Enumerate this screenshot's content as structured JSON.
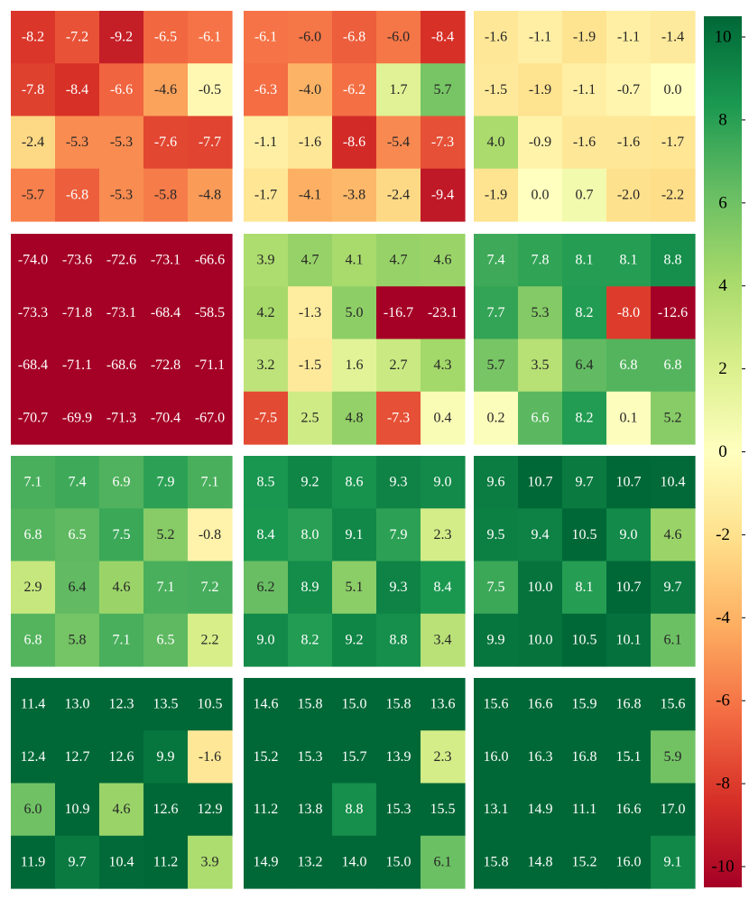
{
  "chart_data": {
    "type": "heatmap",
    "colormap": "RdYlGn",
    "vmin": -10.5,
    "vmax": 10.5,
    "colorbar_ticks": [
      10,
      8,
      6,
      4,
      2,
      0,
      -2,
      -4,
      -6,
      -8,
      -10
    ],
    "colorbar_tick_labels": [
      "10",
      "8",
      "6",
      "4",
      "2",
      "0",
      "-2",
      "-4",
      "-6",
      "-8",
      "-10"
    ],
    "panels": [
      [
        {
          "values": [
            [
              -8.2,
              -7.2,
              -9.2,
              -6.5,
              -6.1
            ],
            [
              -7.8,
              -8.4,
              -6.6,
              -4.6,
              -0.5
            ],
            [
              -2.4,
              -5.3,
              -5.3,
              -7.6,
              -7.7
            ],
            [
              -5.7,
              -6.8,
              -5.3,
              -5.8,
              -4.8
            ]
          ],
          "labels": [
            [
              "-8.2",
              "-7.2",
              "-9.2",
              "-6.5",
              "-6.1"
            ],
            [
              "-7.8",
              "-8.4",
              "-6.6",
              "-4.6",
              "-0.5"
            ],
            [
              "-2.4",
              "-5.3",
              "-5.3",
              "-7.6",
              "-7.7"
            ],
            [
              "-5.7",
              "-6.8",
              "-5.3",
              "-5.8",
              "-4.8"
            ]
          ]
        },
        {
          "values": [
            [
              -6.1,
              -6.0,
              -6.8,
              -6.0,
              -8.4
            ],
            [
              -6.3,
              -4.0,
              -6.2,
              1.7,
              5.7
            ],
            [
              -1.1,
              -1.6,
              -8.6,
              -5.4,
              -7.3
            ],
            [
              -1.7,
              -4.1,
              -3.8,
              -2.4,
              -9.4
            ]
          ],
          "labels": [
            [
              "-6.1",
              "-6.0",
              "-6.8",
              "-6.0",
              "-8.4"
            ],
            [
              "-6.3",
              "-4.0",
              "-6.2",
              "1.7",
              "5.7"
            ],
            [
              "-1.1",
              "-1.6",
              "-8.6",
              "-5.4",
              "-7.3"
            ],
            [
              "-1.7",
              "-4.1",
              "-3.8",
              "-2.4",
              "-9.4"
            ]
          ]
        },
        {
          "values": [
            [
              -1.6,
              -1.1,
              -1.9,
              -1.1,
              -1.4
            ],
            [
              -1.5,
              -1.9,
              -1.1,
              -0.7,
              0.0
            ],
            [
              4.0,
              -0.9,
              -1.6,
              -1.6,
              -1.7
            ],
            [
              -1.9,
              0.0,
              0.7,
              -2.0,
              -2.2
            ]
          ],
          "labels": [
            [
              "-1.6",
              "-1.1",
              "-1.9",
              "-1.1",
              "-1.4"
            ],
            [
              "-1.5",
              "-1.9",
              "-1.1",
              "-0.7",
              "0.0"
            ],
            [
              "4.0",
              "-0.9",
              "-1.6",
              "-1.6",
              "-1.7"
            ],
            [
              "-1.9",
              "0.0",
              "0.7",
              "-2.0",
              "-2.2"
            ]
          ]
        }
      ],
      [
        {
          "values": [
            [
              -74.0,
              -73.6,
              -72.6,
              -73.1,
              -66.6
            ],
            [
              -73.3,
              -71.8,
              -73.1,
              -68.4,
              -58.5
            ],
            [
              -68.4,
              -71.1,
              -68.6,
              -72.8,
              -71.1
            ],
            [
              -70.7,
              -69.9,
              -71.3,
              -70.4,
              -67.0
            ]
          ],
          "labels": [
            [
              "-74.0",
              "-73.6",
              "-72.6",
              "-73.1",
              "-66.6"
            ],
            [
              "-73.3",
              "-71.8",
              "-73.1",
              "-68.4",
              "-58.5"
            ],
            [
              "-68.4",
              "-71.1",
              "-68.6",
              "-72.8",
              "-71.1"
            ],
            [
              "-70.7",
              "-69.9",
              "-71.3",
              "-70.4",
              "-67.0"
            ]
          ]
        },
        {
          "values": [
            [
              3.9,
              4.7,
              4.1,
              4.7,
              4.6
            ],
            [
              4.2,
              -1.3,
              5.0,
              -16.7,
              -23.1
            ],
            [
              3.2,
              -1.5,
              1.6,
              2.7,
              4.3
            ],
            [
              -7.5,
              2.5,
              4.8,
              -7.3,
              0.4
            ]
          ],
          "labels": [
            [
              "3.9",
              "4.7",
              "4.1",
              "4.7",
              "4.6"
            ],
            [
              "4.2",
              "-1.3",
              "5.0",
              "-16.7",
              "-23.1"
            ],
            [
              "3.2",
              "-1.5",
              "1.6",
              "2.7",
              "4.3"
            ],
            [
              "-7.5",
              "2.5",
              "4.8",
              "-7.3",
              "0.4"
            ]
          ]
        },
        {
          "values": [
            [
              7.4,
              7.8,
              8.1,
              8.1,
              8.8
            ],
            [
              7.7,
              5.3,
              8.2,
              -8.0,
              -12.6
            ],
            [
              5.7,
              3.5,
              6.4,
              6.8,
              6.8
            ],
            [
              0.2,
              6.6,
              8.2,
              0.1,
              5.2
            ]
          ],
          "labels": [
            [
              "7.4",
              "7.8",
              "8.1",
              "8.1",
              "8.8"
            ],
            [
              "7.7",
              "5.3",
              "8.2",
              "-8.0",
              "-12.6"
            ],
            [
              "5.7",
              "3.5",
              "6.4",
              "6.8",
              "6.8"
            ],
            [
              "0.2",
              "6.6",
              "8.2",
              "0.1",
              "5.2"
            ]
          ]
        }
      ],
      [
        {
          "values": [
            [
              7.1,
              7.4,
              6.9,
              7.9,
              7.1
            ],
            [
              6.8,
              6.5,
              7.5,
              5.2,
              -0.8
            ],
            [
              2.9,
              6.4,
              4.6,
              7.1,
              7.2
            ],
            [
              6.8,
              5.8,
              7.1,
              6.5,
              2.2
            ]
          ],
          "labels": [
            [
              "7.1",
              "7.4",
              "6.9",
              "7.9",
              "7.1"
            ],
            [
              "6.8",
              "6.5",
              "7.5",
              "5.2",
              "-0.8"
            ],
            [
              "2.9",
              "6.4",
              "4.6",
              "7.1",
              "7.2"
            ],
            [
              "6.8",
              "5.8",
              "7.1",
              "6.5",
              "2.2"
            ]
          ]
        },
        {
          "values": [
            [
              8.5,
              9.2,
              8.6,
              9.3,
              9.0
            ],
            [
              8.4,
              8.0,
              9.1,
              7.9,
              2.3
            ],
            [
              6.2,
              8.9,
              5.1,
              9.3,
              8.4
            ],
            [
              9.0,
              8.2,
              9.2,
              8.8,
              3.4
            ]
          ],
          "labels": [
            [
              "8.5",
              "9.2",
              "8.6",
              "9.3",
              "9.0"
            ],
            [
              "8.4",
              "8.0",
              "9.1",
              "7.9",
              "2.3"
            ],
            [
              "6.2",
              "8.9",
              "5.1",
              "9.3",
              "8.4"
            ],
            [
              "9.0",
              "8.2",
              "9.2",
              "8.8",
              "3.4"
            ]
          ]
        },
        {
          "values": [
            [
              9.6,
              10.7,
              9.7,
              10.7,
              10.4
            ],
            [
              9.5,
              9.4,
              10.5,
              9.0,
              4.6
            ],
            [
              7.5,
              10.0,
              8.1,
              10.7,
              9.7
            ],
            [
              9.9,
              10.0,
              10.5,
              10.1,
              6.1
            ]
          ],
          "labels": [
            [
              "9.6",
              "10.7",
              "9.7",
              "10.7",
              "10.4"
            ],
            [
              "9.5",
              "9.4",
              "10.5",
              "9.0",
              "4.6"
            ],
            [
              "7.5",
              "10.0",
              "8.1",
              "10.7",
              "9.7"
            ],
            [
              "9.9",
              "10.0",
              "10.5",
              "10.1",
              "6.1"
            ]
          ]
        }
      ],
      [
        {
          "values": [
            [
              11.4,
              13.0,
              12.3,
              13.5,
              10.5
            ],
            [
              12.4,
              12.7,
              12.6,
              9.9,
              -1.6
            ],
            [
              6.0,
              10.9,
              4.6,
              12.6,
              12.9
            ],
            [
              11.9,
              9.7,
              10.4,
              11.2,
              3.9
            ]
          ],
          "labels": [
            [
              "11.4",
              "13.0",
              "12.3",
              "13.5",
              "10.5"
            ],
            [
              "12.4",
              "12.7",
              "12.6",
              "9.9",
              "-1.6"
            ],
            [
              "6.0",
              "10.9",
              "4.6",
              "12.6",
              "12.9"
            ],
            [
              "11.9",
              "9.7",
              "10.4",
              "11.2",
              "3.9"
            ]
          ]
        },
        {
          "values": [
            [
              14.6,
              15.8,
              15.0,
              15.8,
              13.6
            ],
            [
              15.2,
              15.3,
              15.7,
              13.9,
              2.3
            ],
            [
              11.2,
              13.8,
              8.8,
              15.3,
              15.5
            ],
            [
              14.9,
              13.2,
              14.0,
              15.0,
              6.1
            ]
          ],
          "labels": [
            [
              "14.6",
              "15.8",
              "15.0",
              "15.8",
              "13.6"
            ],
            [
              "15.2",
              "15.3",
              "15.7",
              "13.9",
              "2.3"
            ],
            [
              "11.2",
              "13.8",
              "8.8",
              "15.3",
              "15.5"
            ],
            [
              "14.9",
              "13.2",
              "14.0",
              "15.0",
              "6.1"
            ]
          ]
        },
        {
          "values": [
            [
              15.6,
              16.6,
              15.9,
              16.8,
              15.6
            ],
            [
              16.0,
              16.3,
              16.8,
              15.1,
              5.9
            ],
            [
              13.1,
              14.9,
              11.1,
              16.6,
              17.0
            ],
            [
              15.8,
              14.8,
              15.2,
              16.0,
              9.1
            ]
          ],
          "labels": [
            [
              "15.6",
              "16.6",
              "15.9",
              "16.8",
              "15.6"
            ],
            [
              "16.0",
              "16.3",
              "16.8",
              "15.1",
              "5.9"
            ],
            [
              "13.1",
              "14.9",
              "11.1",
              "16.6",
              "17.0"
            ],
            [
              "15.8",
              "14.8",
              "15.2",
              "16.0",
              "9.1"
            ]
          ]
        }
      ]
    ]
  }
}
